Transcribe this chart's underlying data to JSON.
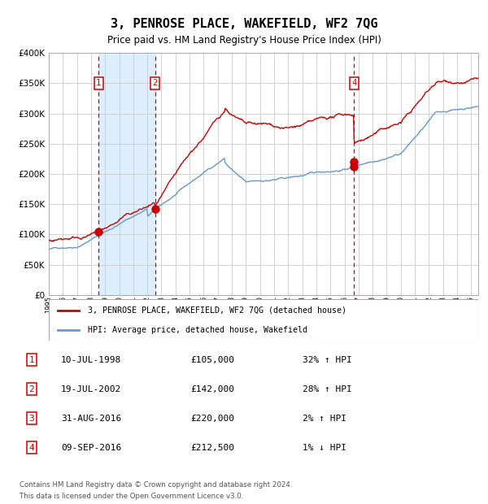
{
  "title": "3, PENROSE PLACE, WAKEFIELD, WF2 7QG",
  "subtitle": "Price paid vs. HM Land Registry's House Price Index (HPI)",
  "hpi_label": "HPI: Average price, detached house, Wakefield",
  "property_label": "3, PENROSE PLACE, WAKEFIELD, WF2 7QG (detached house)",
  "footer1": "Contains HM Land Registry data © Crown copyright and database right 2024.",
  "footer2": "This data is licensed under the Open Government Licence v3.0.",
  "ylim": [
    0,
    400000
  ],
  "yticks": [
    0,
    50000,
    100000,
    150000,
    200000,
    250000,
    300000,
    350000,
    400000
  ],
  "xlim_start": 1995.0,
  "xlim_end": 2025.5,
  "transactions": [
    {
      "num": 1,
      "date_label": "10-JUL-1998",
      "price": 105000,
      "pct": "32%",
      "dir": "↑",
      "year": 1998.53
    },
    {
      "num": 2,
      "date_label": "19-JUL-2002",
      "price": 142000,
      "pct": "28%",
      "dir": "↑",
      "year": 2002.54
    },
    {
      "num": 3,
      "date_label": "31-AUG-2016",
      "price": 220000,
      "pct": "2%",
      "dir": "↑",
      "year": 2016.67
    },
    {
      "num": 4,
      "date_label": "09-SEP-2016",
      "price": 212500,
      "pct": "1%",
      "dir": "↓",
      "year": 2016.69
    }
  ],
  "hpi_color": "#6699cc",
  "property_color": "#cc0000",
  "vline_color": "#cc0000",
  "shade_color": "#ddeeff",
  "grid_color": "#cccccc",
  "background_color": "#ffffff",
  "box_label_color": "#cc0000",
  "show_vline_indices": [
    0,
    1,
    3
  ],
  "show_dot_indices": [
    0,
    1,
    2,
    3
  ]
}
